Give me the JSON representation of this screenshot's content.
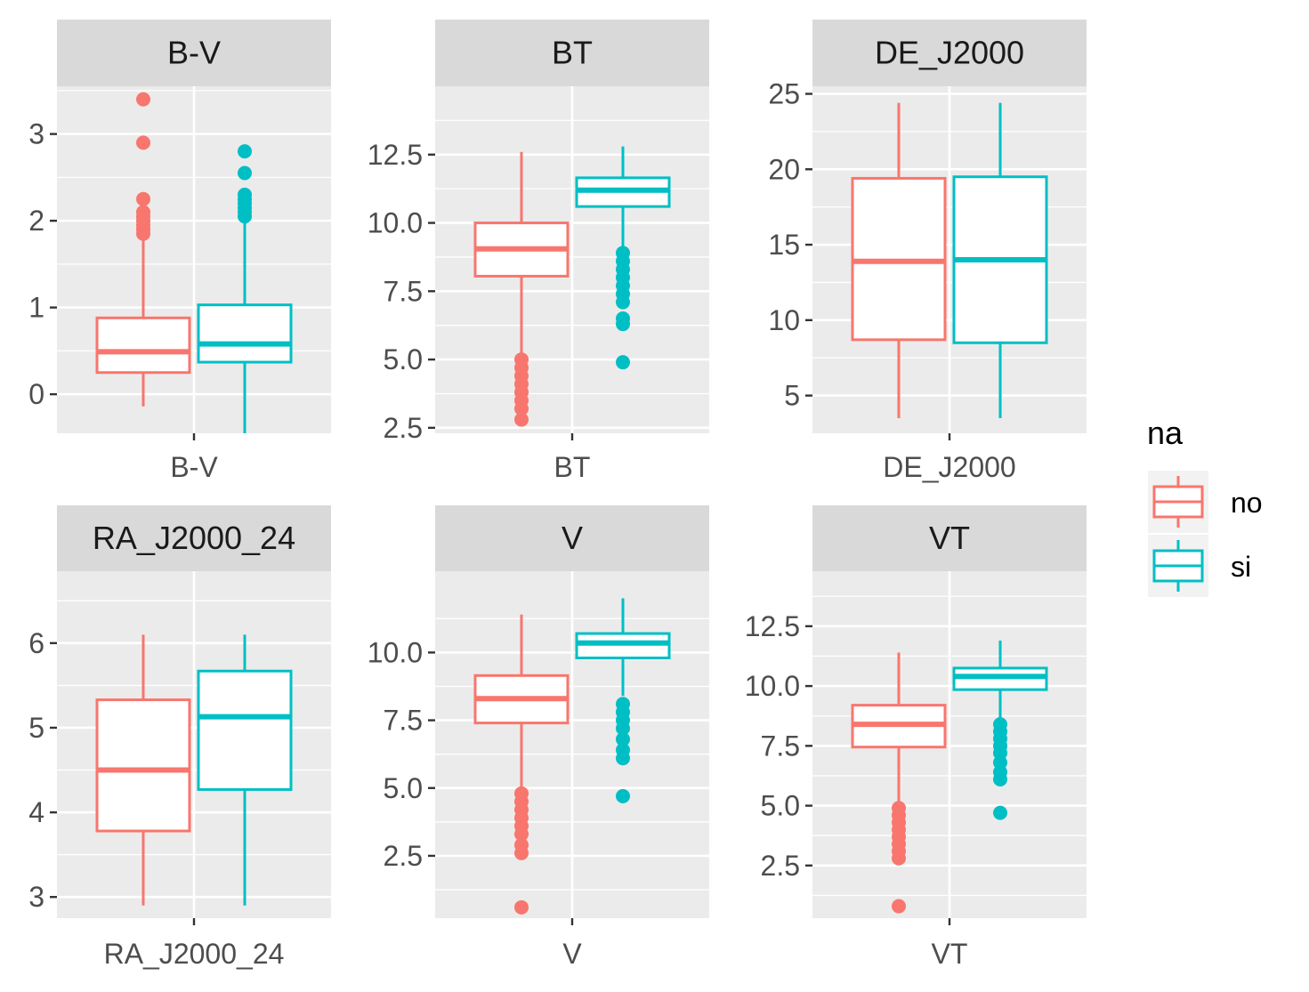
{
  "chart_data": {
    "type": "box",
    "facet_layout": "2 rows x 3 columns, free y scales",
    "grid": true,
    "legend_position": "right",
    "legend": {
      "title": "na",
      "entries": [
        {
          "label": "no",
          "color": "#F8766D"
        },
        {
          "label": "si",
          "color": "#00BFC4"
        }
      ]
    },
    "panels": [
      {
        "strip": "B-V",
        "xtick": "B-V",
        "ylim": [
          -0.45,
          3.55
        ],
        "yticks": [
          0,
          1,
          2,
          3
        ],
        "ytick_labels": [
          "0",
          "1",
          "2",
          "3"
        ],
        "boxes": [
          {
            "group": "no",
            "whisker_low": -0.14,
            "q1": 0.25,
            "median": 0.49,
            "q3": 0.88,
            "whisker_high": 1.8,
            "outliers": [
              1.85,
              1.9,
              1.95,
              2.0,
              2.05,
              2.1,
              2.25,
              2.9,
              3.4
            ]
          },
          {
            "group": "si",
            "whisker_low": -0.45,
            "q1": 0.37,
            "median": 0.58,
            "q3": 1.03,
            "whisker_high": 2.0,
            "outliers": [
              2.05,
              2.1,
              2.15,
              2.2,
              2.25,
              2.3,
              2.55,
              2.8
            ]
          }
        ]
      },
      {
        "strip": "BT",
        "xtick": "BT",
        "ylim": [
          2.3,
          15.0
        ],
        "yticks": [
          2.5,
          5.0,
          7.5,
          10.0,
          12.5
        ],
        "ytick_labels": [
          "2.5",
          "5.0",
          "7.5",
          "10.0",
          "12.5"
        ],
        "boxes": [
          {
            "group": "no",
            "whisker_low": 5.1,
            "q1": 8.05,
            "median": 9.05,
            "q3": 10.0,
            "whisker_high": 12.6,
            "outliers": [
              2.8,
              3.2,
              3.5,
              3.8,
              4.1,
              4.4,
              4.7,
              5.0
            ]
          },
          {
            "group": "si",
            "whisker_low": 9.0,
            "q1": 10.6,
            "median": 11.2,
            "q3": 11.65,
            "whisker_high": 12.8,
            "outliers": [
              4.9,
              6.3,
              6.5,
              7.1,
              7.4,
              7.7,
              8.0,
              8.3,
              8.6,
              8.9
            ]
          }
        ]
      },
      {
        "strip": "DE_J2000",
        "xtick": "DE_J2000",
        "ylim": [
          2.5,
          25.5
        ],
        "yticks": [
          5,
          10,
          15,
          20,
          25
        ],
        "ytick_labels": [
          "5",
          "10",
          "15",
          "20",
          "25"
        ],
        "boxes": [
          {
            "group": "no",
            "whisker_low": 3.5,
            "q1": 8.7,
            "median": 13.9,
            "q3": 19.4,
            "whisker_high": 24.4,
            "outliers": []
          },
          {
            "group": "si",
            "whisker_low": 3.5,
            "q1": 8.5,
            "median": 14.0,
            "q3": 19.5,
            "whisker_high": 24.4,
            "outliers": []
          }
        ]
      },
      {
        "strip": "RA_J2000_24",
        "xtick": "RA_J2000_24",
        "ylim": [
          2.75,
          6.85
        ],
        "yticks": [
          3,
          4,
          5,
          6
        ],
        "ytick_labels": [
          "3",
          "4",
          "5",
          "6"
        ],
        "boxes": [
          {
            "group": "no",
            "whisker_low": 2.9,
            "q1": 3.78,
            "median": 4.5,
            "q3": 5.33,
            "whisker_high": 6.1,
            "outliers": []
          },
          {
            "group": "si",
            "whisker_low": 2.9,
            "q1": 4.27,
            "median": 5.13,
            "q3": 5.67,
            "whisker_high": 6.1,
            "outliers": []
          }
        ]
      },
      {
        "strip": "V",
        "xtick": "V",
        "ylim": [
          0.2,
          13.0
        ],
        "yticks": [
          2.5,
          5.0,
          7.5,
          10.0
        ],
        "ytick_labels": [
          "2.5",
          "5.0",
          "7.5",
          "10.0"
        ],
        "boxes": [
          {
            "group": "no",
            "whisker_low": 5.0,
            "q1": 7.4,
            "median": 8.3,
            "q3": 9.15,
            "whisker_high": 11.4,
            "outliers": [
              0.6,
              2.6,
              2.9,
              3.3,
              3.6,
              3.9,
              4.2,
              4.5,
              4.8
            ]
          },
          {
            "group": "si",
            "whisker_low": 8.4,
            "q1": 9.8,
            "median": 10.35,
            "q3": 10.7,
            "whisker_high": 12.0,
            "outliers": [
              4.7,
              6.1,
              6.4,
              6.8,
              7.2,
              7.5,
              7.8,
              8.1
            ]
          }
        ]
      },
      {
        "strip": "VT",
        "xtick": "VT",
        "ylim": [
          0.3,
          14.8
        ],
        "yticks": [
          2.5,
          5.0,
          7.5,
          10.0,
          12.5
        ],
        "ytick_labels": [
          "2.5",
          "5.0",
          "7.5",
          "10.0",
          "12.5"
        ],
        "boxes": [
          {
            "group": "no",
            "whisker_low": 5.0,
            "q1": 7.45,
            "median": 8.4,
            "q3": 9.2,
            "whisker_high": 11.4,
            "outliers": [
              0.8,
              2.8,
              3.1,
              3.4,
              3.7,
              4.0,
              4.3,
              4.6,
              4.9
            ]
          },
          {
            "group": "si",
            "whisker_low": 8.5,
            "q1": 9.85,
            "median": 10.4,
            "q3": 10.75,
            "whisker_high": 11.9,
            "outliers": [
              4.7,
              6.1,
              6.4,
              6.8,
              7.2,
              7.5,
              7.8,
              8.1,
              8.4
            ]
          }
        ]
      }
    ]
  }
}
